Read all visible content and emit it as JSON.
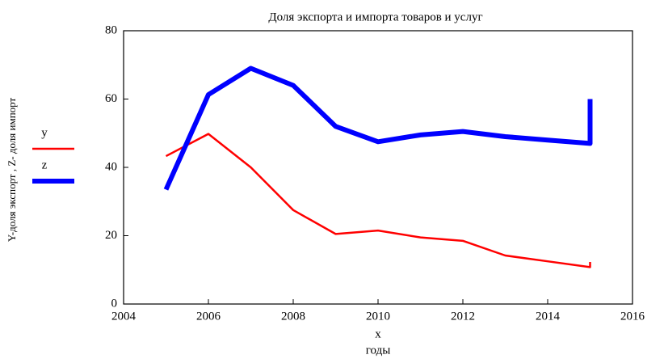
{
  "chart_data": {
    "type": "line",
    "title": "Доля экспорта и импорта товаров и услуг",
    "x_label": "x",
    "x_sublabel": "годы",
    "y_label": "Y-доля экспорт , Z- доля импорт",
    "x": [
      2005,
      2006,
      2007,
      2008,
      2009,
      2010,
      2011,
      2012,
      2013,
      2014,
      2015,
      2015
    ],
    "series": [
      {
        "name": "y",
        "color": "#ff0000",
        "values": [
          43.3,
          49.8,
          40,
          27.5,
          20.5,
          21.5,
          19.5,
          18.5,
          14.2,
          12.5,
          10.8,
          12.3
        ]
      },
      {
        "name": "z",
        "color": "#0000ff",
        "values": [
          33.5,
          61.3,
          69,
          64,
          52,
          47.5,
          49.5,
          50.5,
          49,
          48,
          47,
          60
        ]
      }
    ],
    "xlim": [
      2004,
      2016
    ],
    "xticks": [
      2004,
      2006,
      2008,
      2010,
      2012,
      2014,
      2016
    ],
    "ylim": [
      0,
      80
    ],
    "yticks": [
      0,
      20,
      40,
      60,
      80
    ],
    "legend": "left"
  }
}
